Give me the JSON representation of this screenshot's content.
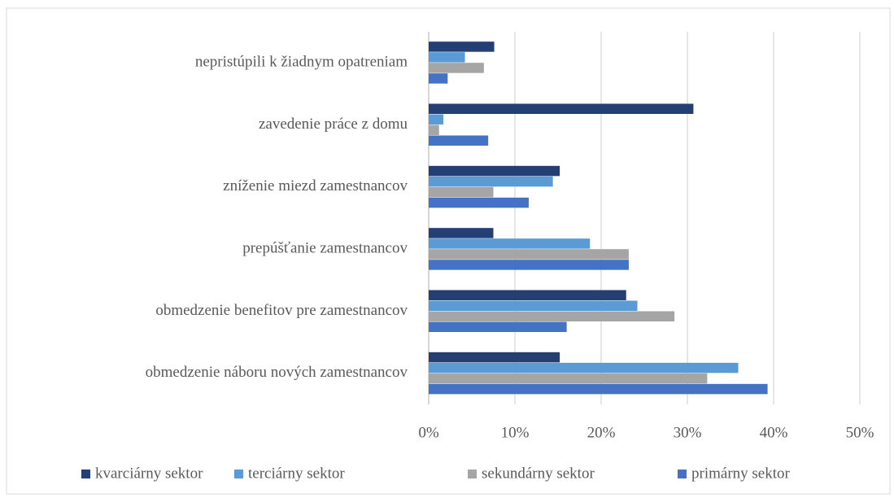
{
  "chart_data": {
    "type": "hbar",
    "categories": [
      "nepristúpili k žiadnym opatreniam",
      "zavedenie práce z domu",
      "zníženie miezd zamestnancov",
      "prepúšťanie zamestnancov",
      "obmedzenie benefitov pre zamestnancov",
      "obmedzenie náboru nových zamestnancov"
    ],
    "series": [
      {
        "name": "kvarciárny sektor",
        "color": "#243f73",
        "values": [
          7.6,
          30.7,
          15.2,
          7.5,
          22.9,
          15.2
        ]
      },
      {
        "name": "terciárny sektor",
        "color": "#5b9bd5",
        "values": [
          4.2,
          1.7,
          14.4,
          18.7,
          24.2,
          35.9
        ]
      },
      {
        "name": "sekundárny sektor",
        "color": "#a5a5a5",
        "values": [
          6.4,
          1.2,
          7.5,
          23.2,
          28.5,
          32.3
        ]
      },
      {
        "name": "primárny sektor",
        "color": "#4472c4",
        "values": [
          2.2,
          6.9,
          11.6,
          23.2,
          16.0,
          39.3
        ]
      }
    ],
    "xlim": [
      0,
      50
    ],
    "xticks": [
      {
        "value": 0,
        "label": "0%"
      },
      {
        "value": 10,
        "label": "10%"
      },
      {
        "value": 20,
        "label": "20%"
      },
      {
        "value": 30,
        "label": "30%"
      },
      {
        "value": 40,
        "label": "40%"
      },
      {
        "value": 50,
        "label": "50%"
      }
    ],
    "grid": true,
    "legend": "bottom"
  }
}
